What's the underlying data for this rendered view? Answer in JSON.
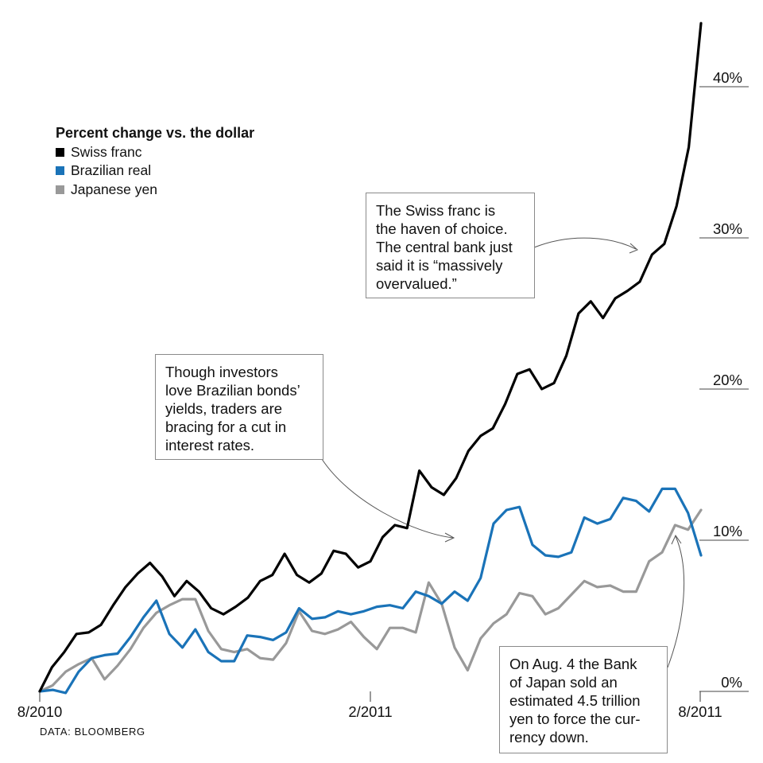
{
  "legend": {
    "title": "Percent change vs. the dollar",
    "items": [
      {
        "label": "Swiss franc",
        "color": "#000000"
      },
      {
        "label": "Brazilian real",
        "color": "#1a73b8"
      },
      {
        "label": "Japanese yen",
        "color": "#999999"
      }
    ]
  },
  "annotations": {
    "franc": [
      "The Swiss franc is",
      "the haven of choice.",
      "The central bank just",
      "said it is “massively",
      "overvalued.”"
    ],
    "real": [
      "Though investors",
      "love Brazilian bonds’",
      "yields, traders are",
      "bracing for a cut in",
      "interest rates."
    ],
    "yen": [
      "On Aug. 4 the Bank",
      "of Japan sold an",
      "estimated 4.5 trillion",
      "yen to force the cur-",
      "rency down."
    ]
  },
  "source": "DATA: BLOOMBERG",
  "chart_data": {
    "type": "line",
    "title": "Percent change vs. the dollar",
    "xlabel": "",
    "ylabel": "",
    "ylim": [
      0,
      45
    ],
    "x_ticks": [
      "8/2010",
      "2/2011",
      "8/2011"
    ],
    "y_ticks": [
      "0%",
      "10%",
      "20%",
      "30%",
      "40%"
    ],
    "y_tick_values": [
      0,
      10,
      20,
      30,
      40
    ],
    "grid": false,
    "series": [
      {
        "name": "Swiss franc",
        "color": "#000000",
        "values": [
          0,
          1.6,
          2.6,
          3.8,
          3.9,
          4.4,
          5.7,
          6.9,
          7.8,
          8.5,
          7.6,
          6.3,
          7.3,
          6.6,
          5.5,
          5.1,
          5.6,
          6.2,
          7.3,
          7.7,
          9.1,
          7.7,
          7.2,
          7.8,
          9.3,
          9.1,
          8.2,
          8.6,
          10.2,
          11.0,
          10.8,
          14.6,
          13.5,
          13.0,
          14.1,
          15.9,
          16.9,
          17.4,
          19.0,
          21.0,
          21.3,
          20.0,
          20.4,
          22.2,
          25.0,
          25.8,
          24.7,
          26.0,
          26.5,
          27.1,
          28.9,
          29.6,
          32.1,
          36.0,
          44.2
        ]
      },
      {
        "name": "Brazilian real",
        "color": "#1a73b8",
        "values": [
          0,
          0.1,
          -0.1,
          1.3,
          2.2,
          2.4,
          2.5,
          3.6,
          4.9,
          6.0,
          3.8,
          2.9,
          4.1,
          2.6,
          2.0,
          2.0,
          3.7,
          3.6,
          3.4,
          3.9,
          5.5,
          4.8,
          4.9,
          5.3,
          5.1,
          5.3,
          5.6,
          5.7,
          5.5,
          6.6,
          6.3,
          5.8,
          6.6,
          6.0,
          7.5,
          11.1,
          12.0,
          12.2,
          9.7,
          9.0,
          8.9,
          9.2,
          11.5,
          11.1,
          11.4,
          12.8,
          12.6,
          11.9,
          13.4,
          13.4,
          11.8,
          9.0
        ]
      },
      {
        "name": "Japanese yen",
        "color": "#999999",
        "values": [
          0,
          0.4,
          1.3,
          1.8,
          2.2,
          0.8,
          1.7,
          2.8,
          4.2,
          5.2,
          5.7,
          6.1,
          6.1,
          4.0,
          2.8,
          2.6,
          2.8,
          2.2,
          2.1,
          3.2,
          5.3,
          4.0,
          3.8,
          4.1,
          4.6,
          3.6,
          2.8,
          4.2,
          4.2,
          3.9,
          7.2,
          5.8,
          2.9,
          1.4,
          3.5,
          4.5,
          5.1,
          6.5,
          6.3,
          5.1,
          5.5,
          6.4,
          7.3,
          6.9,
          7.0,
          6.6,
          6.6,
          8.6,
          9.2,
          11.0,
          10.7,
          12.0
        ]
      }
    ]
  }
}
